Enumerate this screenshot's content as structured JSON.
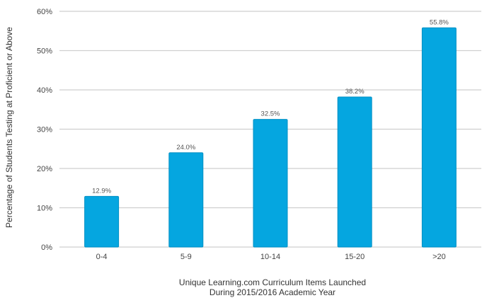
{
  "chart_data": {
    "type": "bar",
    "categories": [
      "0-4",
      "5-9",
      "10-14",
      "15-20",
      ">20"
    ],
    "values": [
      12.9,
      24.0,
      32.5,
      38.2,
      55.8
    ],
    "data_labels": [
      "12.9%",
      "24.0%",
      "32.5%",
      "38.2%",
      "55.8%"
    ],
    "ylim": [
      0,
      60
    ],
    "yticks": [
      0,
      10,
      20,
      30,
      40,
      50,
      60
    ],
    "ytick_labels": [
      "0%",
      "10%",
      "20%",
      "30%",
      "40%",
      "50%",
      "60%"
    ],
    "ylabel": "Percentage of Students Testing at Proficient or Above",
    "xlabel_lines": [
      "Unique Learning.com Curriculum Items Launched",
      "During 2015/2016 Academic Year"
    ],
    "grid": true,
    "colors": {
      "bar": "#05a6e0",
      "bar_edge": "#0390c4",
      "grid": "#cfcfcf",
      "plot_background": "#ffffff"
    }
  }
}
